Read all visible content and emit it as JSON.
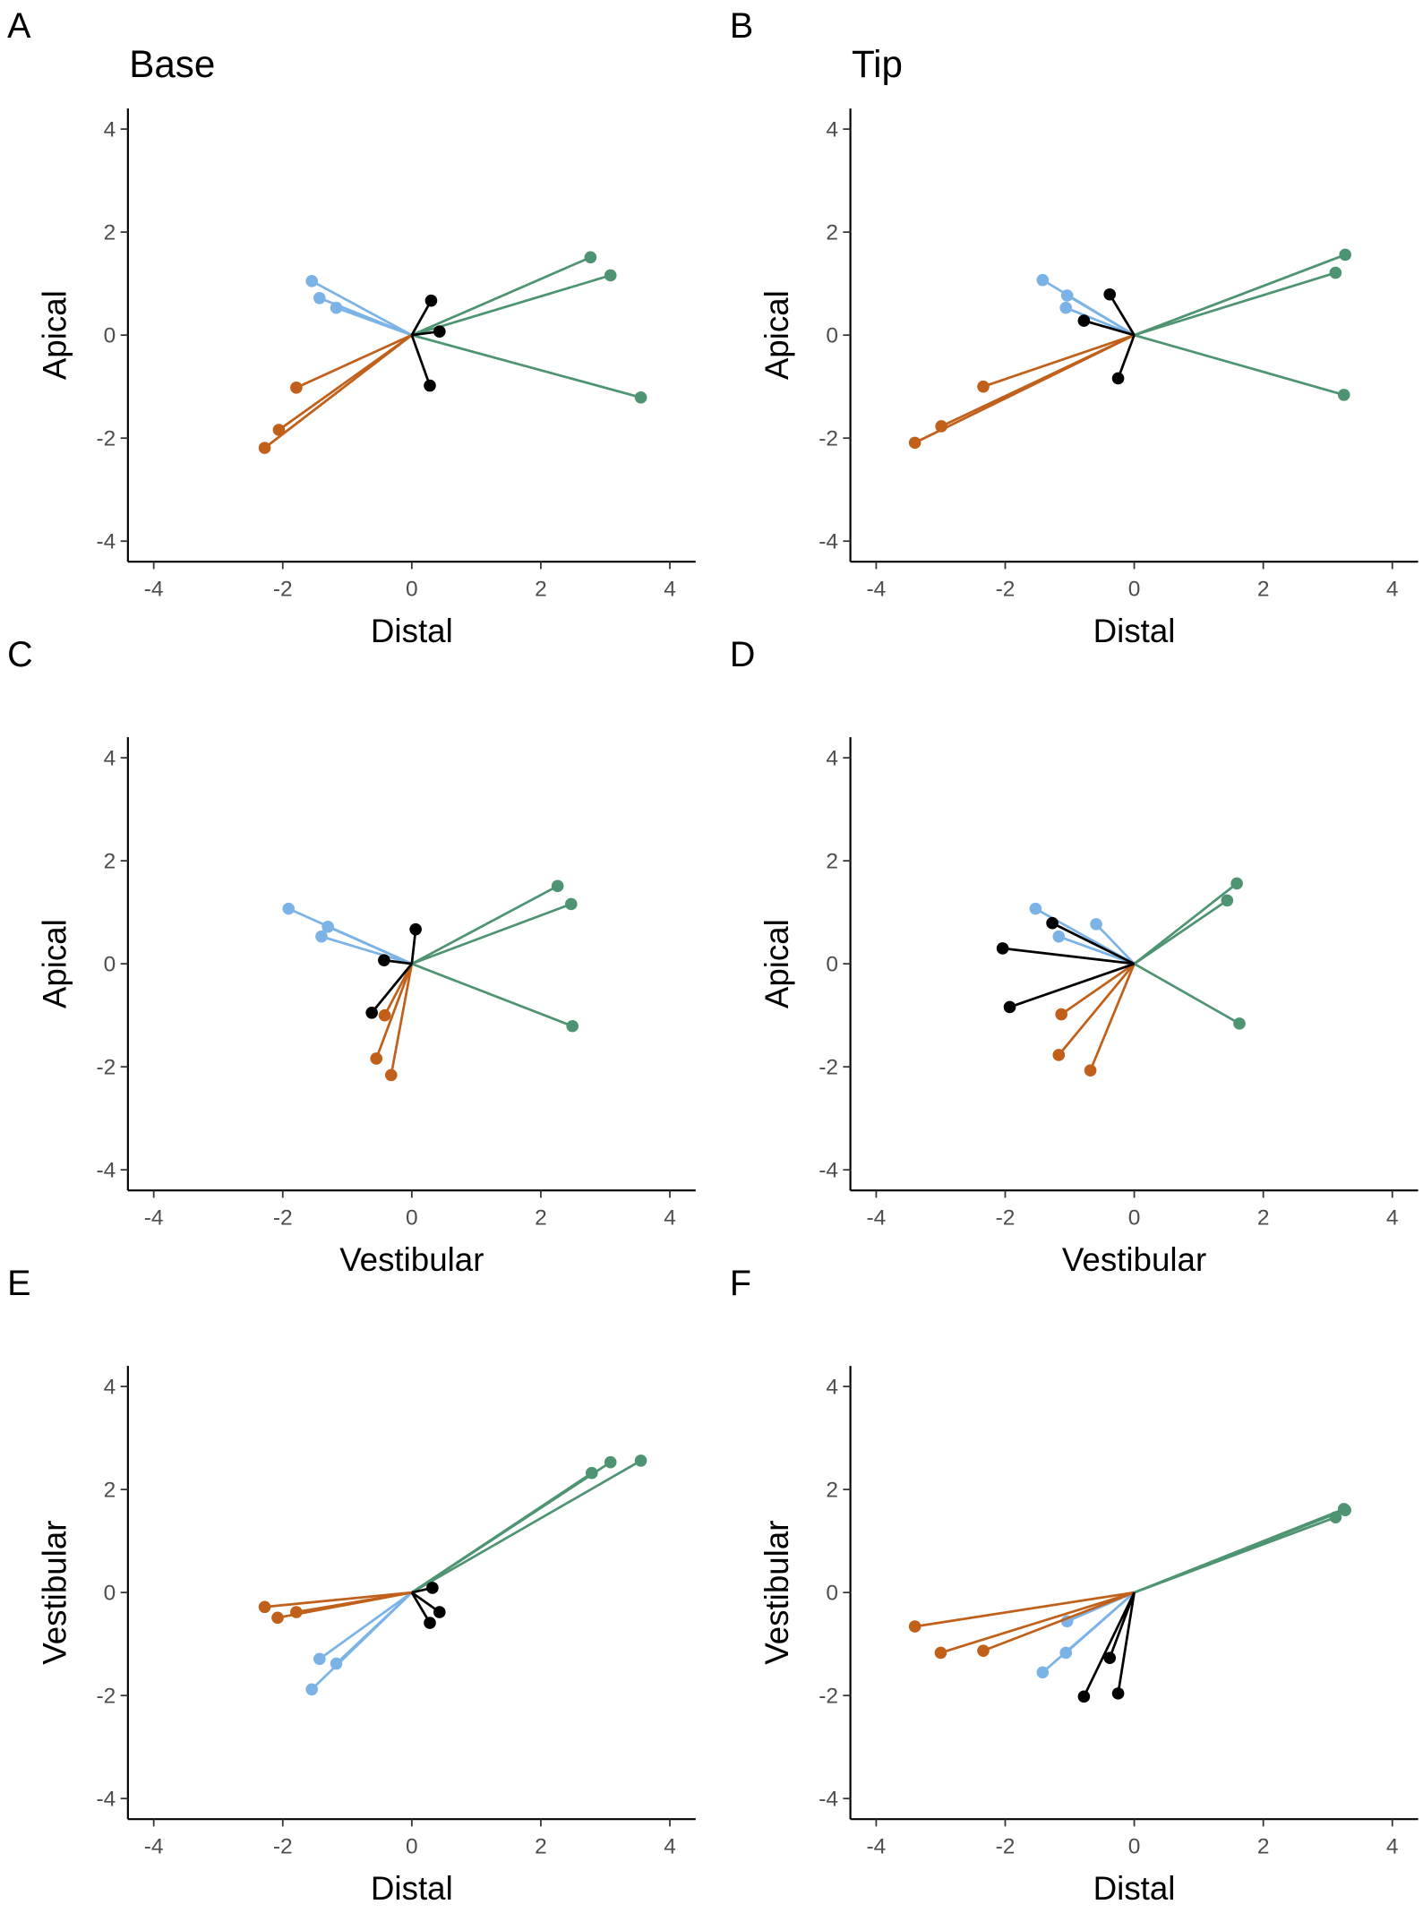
{
  "chart_data": [
    {
      "type": "vector",
      "label": "A",
      "title": "Base",
      "xlabel": "Distal",
      "ylabel": "Apical",
      "xlim": [
        -4.4,
        4.4
      ],
      "ylim": [
        -4.4,
        4.4
      ],
      "xticks": [
        -4,
        -2,
        0,
        2,
        4
      ],
      "yticks": [
        -4,
        -2,
        0,
        2,
        4
      ],
      "series": [
        {
          "color": "#7cb3e6",
          "x": [
            -1.55,
            -1.43,
            -1.17
          ],
          "values": [
            1.05,
            0.72,
            0.53
          ]
        },
        {
          "color": "#c0601a",
          "x": [
            -1.79,
            -2.06,
            -2.28
          ],
          "values": [
            -1.02,
            -1.84,
            -2.19
          ]
        },
        {
          "color": "#4f9472",
          "x": [
            2.77,
            3.08,
            3.55
          ],
          "values": [
            1.51,
            1.16,
            -1.21
          ]
        },
        {
          "color": "#000000",
          "x": [
            0.3,
            0.43,
            0.28
          ],
          "values": [
            0.67,
            0.07,
            -0.98
          ]
        }
      ]
    },
    {
      "type": "vector",
      "label": "B",
      "title": "Tip",
      "xlabel": "Distal",
      "ylabel": "Apical",
      "xlim": [
        -4.4,
        4.4
      ],
      "ylim": [
        -4.4,
        4.4
      ],
      "xticks": [
        -4,
        -2,
        0,
        2,
        4
      ],
      "yticks": [
        -4,
        -2,
        0,
        2,
        4
      ],
      "series": [
        {
          "color": "#7cb3e6",
          "x": [
            -1.42,
            -1.04,
            -1.06
          ],
          "values": [
            1.07,
            0.77,
            0.53
          ]
        },
        {
          "color": "#c0601a",
          "x": [
            -2.34,
            -2.99,
            -3.4
          ],
          "values": [
            -1.0,
            -1.77,
            -2.09
          ]
        },
        {
          "color": "#4f9472",
          "x": [
            3.27,
            3.12,
            3.25
          ],
          "values": [
            1.56,
            1.21,
            -1.16
          ]
        },
        {
          "color": "#000000",
          "x": [
            -0.38,
            -0.78,
            -0.25
          ],
          "values": [
            0.79,
            0.28,
            -0.84
          ]
        }
      ]
    },
    {
      "type": "vector",
      "label": "C",
      "xlabel": "Vestibular",
      "ylabel": "Apical",
      "xlim": [
        -4.4,
        4.4
      ],
      "ylim": [
        -4.4,
        4.4
      ],
      "xticks": [
        -4,
        -2,
        0,
        2,
        4
      ],
      "yticks": [
        -4,
        -2,
        0,
        2,
        4
      ],
      "series": [
        {
          "color": "#7cb3e6",
          "x": [
            -1.91,
            -1.3,
            -1.4
          ],
          "values": [
            1.07,
            0.72,
            0.53
          ]
        },
        {
          "color": "#c0601a",
          "x": [
            -0.42,
            -0.55,
            -0.32
          ],
          "values": [
            -1.0,
            -1.84,
            -2.16
          ]
        },
        {
          "color": "#4f9472",
          "x": [
            2.26,
            2.47,
            2.49
          ],
          "values": [
            1.51,
            1.16,
            -1.21
          ]
        },
        {
          "color": "#000000",
          "x": [
            0.06,
            -0.43,
            -0.62
          ],
          "values": [
            0.67,
            0.07,
            -0.95
          ]
        }
      ]
    },
    {
      "type": "vector",
      "label": "D",
      "xlabel": "Vestibular",
      "ylabel": "Apical",
      "xlim": [
        -4.4,
        4.4
      ],
      "ylim": [
        -4.4,
        4.4
      ],
      "xticks": [
        -4,
        -2,
        0,
        2,
        4
      ],
      "yticks": [
        -4,
        -2,
        0,
        2,
        4
      ],
      "series": [
        {
          "color": "#7cb3e6",
          "x": [
            -1.53,
            -1.17,
            -0.59
          ],
          "values": [
            1.07,
            0.53,
            0.77
          ]
        },
        {
          "color": "#c0601a",
          "x": [
            -1.13,
            -1.17,
            -0.68
          ],
          "values": [
            -0.98,
            -1.77,
            -2.07
          ]
        },
        {
          "color": "#4f9472",
          "x": [
            1.59,
            1.44,
            1.63
          ],
          "values": [
            1.56,
            1.23,
            -1.16
          ]
        },
        {
          "color": "#000000",
          "x": [
            -1.27,
            -2.04,
            -1.93
          ],
          "values": [
            0.79,
            0.3,
            -0.84
          ]
        }
      ]
    },
    {
      "type": "vector",
      "label": "E",
      "xlabel": "Distal",
      "ylabel": "Vestibular",
      "xlim": [
        -4.4,
        4.4
      ],
      "ylim": [
        -4.4,
        4.4
      ],
      "xticks": [
        -4,
        -2,
        0,
        2,
        4
      ],
      "yticks": [
        -4,
        -2,
        0,
        2,
        4
      ],
      "series": [
        {
          "color": "#7cb3e6",
          "x": [
            -1.43,
            -1.17,
            -1.55
          ],
          "values": [
            -1.29,
            -1.38,
            -1.88
          ]
        },
        {
          "color": "#c0601a",
          "x": [
            -1.79,
            -2.08,
            -2.28
          ],
          "values": [
            -0.38,
            -0.49,
            -0.28
          ]
        },
        {
          "color": "#4f9472",
          "x": [
            2.79,
            3.08,
            3.55
          ],
          "values": [
            2.32,
            2.53,
            2.56
          ]
        },
        {
          "color": "#000000",
          "x": [
            0.32,
            0.43,
            0.28
          ],
          "values": [
            0.09,
            -0.38,
            -0.59
          ]
        }
      ]
    },
    {
      "type": "vector",
      "label": "F",
      "xlabel": "Distal",
      "ylabel": "Vestibular",
      "xlim": [
        -4.4,
        4.4
      ],
      "ylim": [
        -4.4,
        4.4
      ],
      "xticks": [
        -4,
        -2,
        0,
        2,
        4
      ],
      "yticks": [
        -4,
        -2,
        0,
        2,
        4
      ],
      "series": [
        {
          "color": "#7cb3e6",
          "x": [
            -1.04,
            -1.06,
            -1.42
          ],
          "values": [
            -0.56,
            -1.17,
            -1.55
          ]
        },
        {
          "color": "#c0601a",
          "x": [
            -3.4,
            -3.0,
            -2.34
          ],
          "values": [
            -0.66,
            -1.17,
            -1.13
          ]
        },
        {
          "color": "#4f9472",
          "x": [
            3.25,
            3.12,
            3.27
          ],
          "values": [
            1.62,
            1.46,
            1.6
          ]
        },
        {
          "color": "#000000",
          "x": [
            -0.38,
            -0.78,
            -0.25
          ],
          "values": [
            -1.27,
            -2.02,
            -1.96
          ]
        }
      ]
    }
  ]
}
